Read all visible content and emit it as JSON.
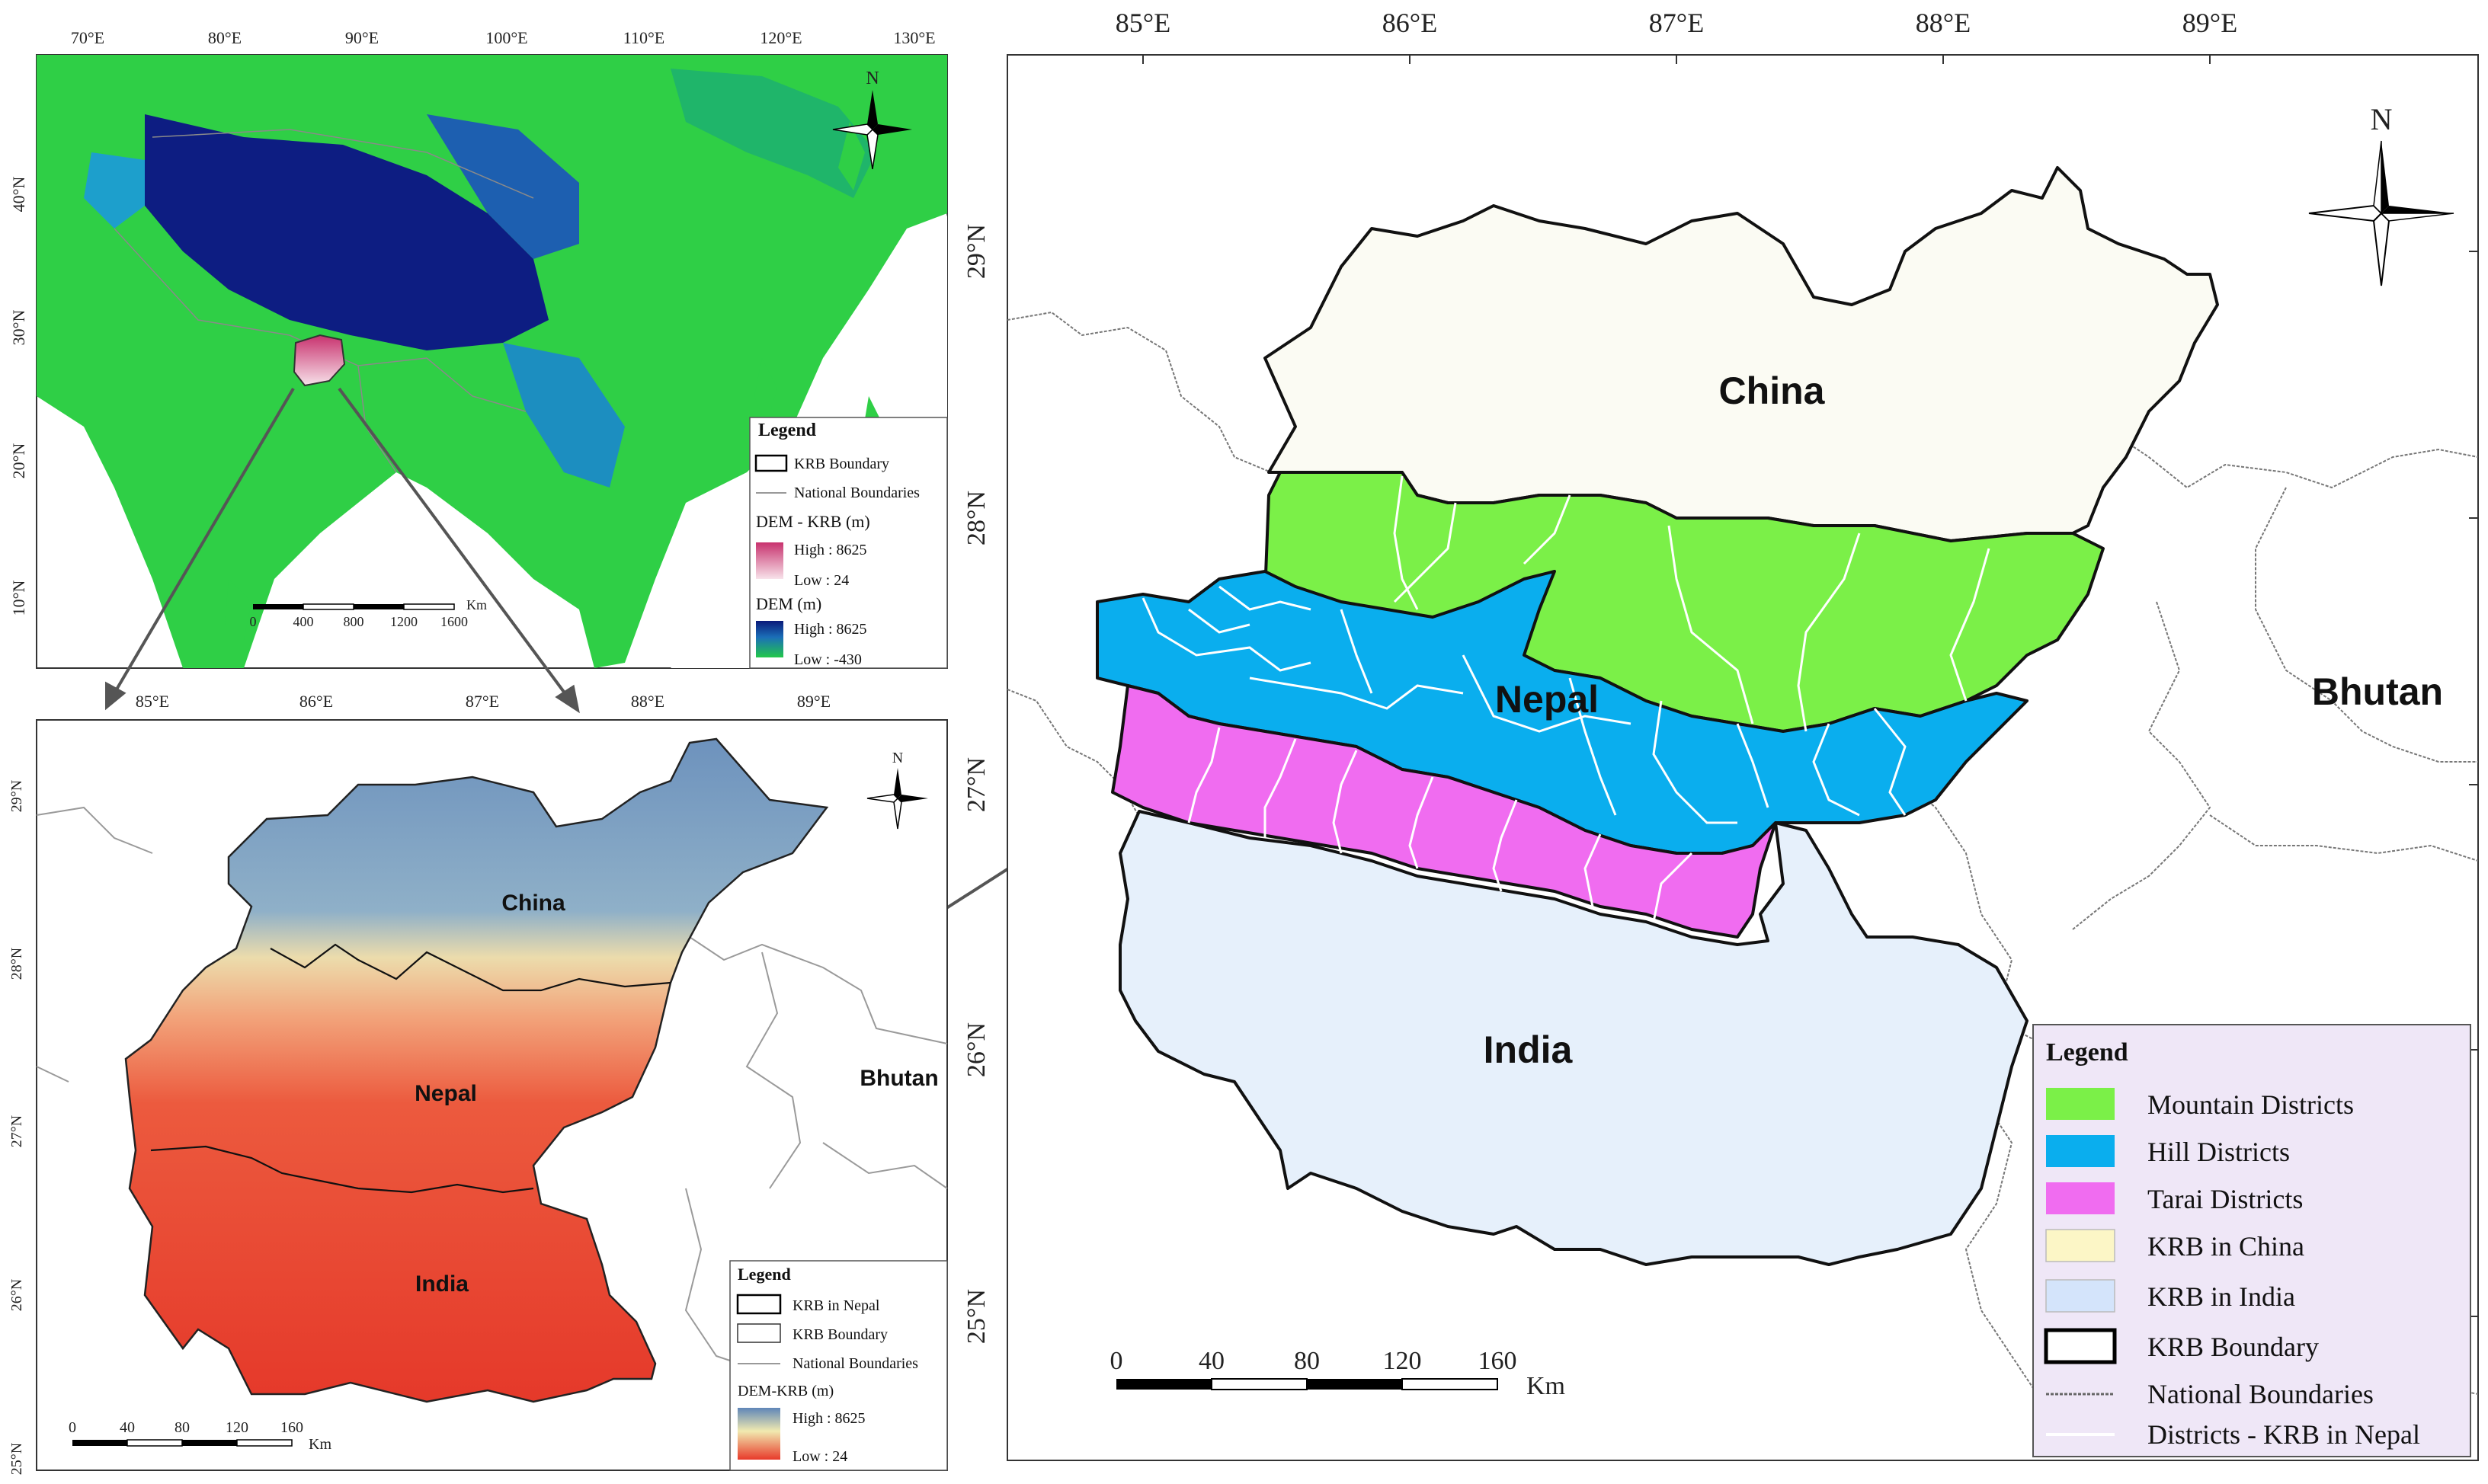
{
  "colors": {
    "mountain": "#7bf048",
    "hill": "#0aaeee",
    "tarai": "#f06cf0",
    "china_fill": "#fbfbf3",
    "india_fill": "#e6f0fb",
    "legend_bg": "#efe7f7",
    "dem_high": "#0a1a7a",
    "dem_low": "#22c84a",
    "krb_dem_high": "#5f86b8",
    "krb_dem_low": "#e83a2a"
  },
  "asia_map": {
    "lon_ticks": [
      "70°E",
      "80°E",
      "90°E",
      "100°E",
      "110°E",
      "120°E",
      "130°E"
    ],
    "lat_ticks": [
      "40°N",
      "30°N",
      "20°N",
      "10°N"
    ],
    "north": "N",
    "scale": {
      "ticks": [
        "0",
        "400",
        "800",
        "1200",
        "1600"
      ],
      "unit": "Km"
    },
    "legend": {
      "title": "Legend",
      "krb_boundary": "KRB Boundary",
      "national": "National Boundaries",
      "dem_krb_title": "DEM - KRB (m)",
      "dem_krb_high": "High : 8625",
      "dem_krb_low": "Low : 24",
      "dem_title": "DEM (m)",
      "dem_high": "High : 8625",
      "dem_low": "Low : -430"
    }
  },
  "krb_dem_map": {
    "lon_ticks": [
      "85°E",
      "86°E",
      "87°E",
      "88°E",
      "89°E"
    ],
    "lat_ticks": [
      "29°N",
      "28°N",
      "27°N",
      "26°N",
      "25°N"
    ],
    "north": "N",
    "countries": {
      "china": "China",
      "nepal": "Nepal",
      "india": "India",
      "bhutan": "Bhutan"
    },
    "scale": {
      "ticks": [
        "0",
        "40",
        "80",
        "120",
        "160"
      ],
      "unit": "Km"
    },
    "legend": {
      "title": "Legend",
      "krb_nepal": "KRB in Nepal",
      "krb_boundary": "KRB Boundary",
      "national": "National Boundaries",
      "dem_title": "DEM-KRB (m)",
      "high": "High : 8625",
      "low": "Low : 24"
    }
  },
  "district_map": {
    "lon_ticks": [
      "85°E",
      "86°E",
      "87°E",
      "88°E",
      "89°E"
    ],
    "lat_ticks": [
      "29°N",
      "28°N",
      "27°N",
      "26°N",
      "25°N"
    ],
    "north": "N",
    "countries": {
      "china": "China",
      "nepal": "Nepal",
      "india": "India",
      "bhutan": "Bhutan"
    },
    "scale": {
      "ticks": [
        "0",
        "40",
        "80",
        "120",
        "160"
      ],
      "unit": "Km"
    },
    "legend": {
      "title": "Legend",
      "mountain": "Mountain Districts",
      "hill": "Hill Districts",
      "tarai": "Tarai Districts",
      "china": "KRB in China",
      "india": "KRB in India",
      "boundary": "KRB Boundary",
      "national": "National Boundaries",
      "districts": "Districts - KRB in Nepal"
    }
  }
}
